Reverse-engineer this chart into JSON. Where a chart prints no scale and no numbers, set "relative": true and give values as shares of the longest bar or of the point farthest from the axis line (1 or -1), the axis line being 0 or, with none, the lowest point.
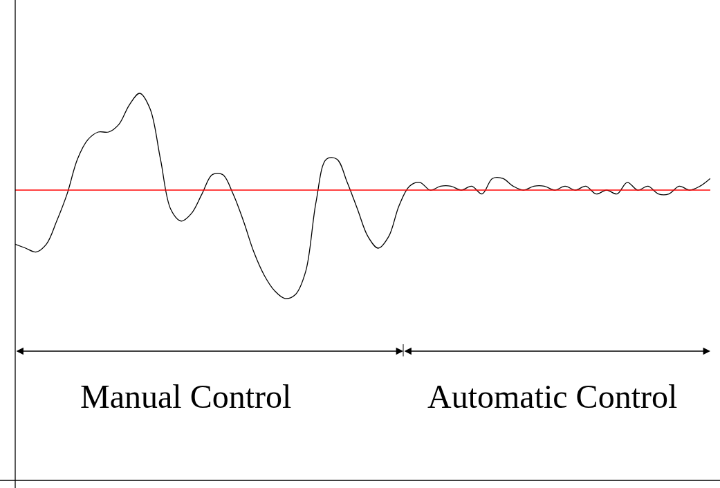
{
  "chart_data": {
    "type": "line",
    "relative": true,
    "categories": [
      null,
      null,
      null,
      null,
      null,
      null,
      null,
      null,
      null,
      null,
      null,
      null,
      null,
      null,
      null,
      null,
      null,
      null,
      null,
      null,
      null,
      null,
      null,
      null,
      null,
      null,
      null,
      null,
      null,
      null,
      null,
      null,
      null,
      null,
      null,
      null,
      null,
      null,
      null,
      null,
      null,
      null,
      null,
      null,
      null,
      null,
      null,
      null,
      null,
      null,
      null,
      null,
      null,
      null,
      null,
      null,
      null,
      null,
      null,
      null,
      null,
      null,
      null,
      null,
      null,
      null,
      null,
      null
    ],
    "series": [
      {
        "color": "#000000",
        "values": [
          0.61,
          0.6,
          0.59,
          0.61,
          0.67,
          0.74,
          0.83,
          0.88,
          0.9,
          0.9,
          0.92,
          0.97,
          1.0,
          0.96,
          0.83,
          0.7,
          0.67,
          0.69,
          0.74,
          0.79,
          0.79,
          0.74,
          0.67,
          0.59,
          0.53,
          0.49,
          0.47,
          0.48,
          0.54,
          0.72,
          0.83,
          0.83,
          0.77,
          0.7,
          0.63,
          0.6,
          0.63,
          0.71,
          0.76,
          0.77,
          0.75,
          0.76,
          0.76,
          0.75,
          0.76,
          0.74,
          0.78,
          0.78,
          0.76,
          0.75,
          0.76,
          0.76,
          0.75,
          0.76,
          0.75,
          0.76,
          0.74,
          0.75,
          0.74,
          0.77,
          0.75,
          0.76,
          0.74,
          0.74,
          0.76,
          0.75,
          0.76,
          0.78
        ]
      }
    ],
    "ref_lines": [
      {
        "axis": "y",
        "value": 0.75,
        "color": "#ff0000"
      }
    ],
    "annotations": [
      "Manual Control",
      "Automatic Control"
    ],
    "marker": "none",
    "line_style": "solid"
  }
}
